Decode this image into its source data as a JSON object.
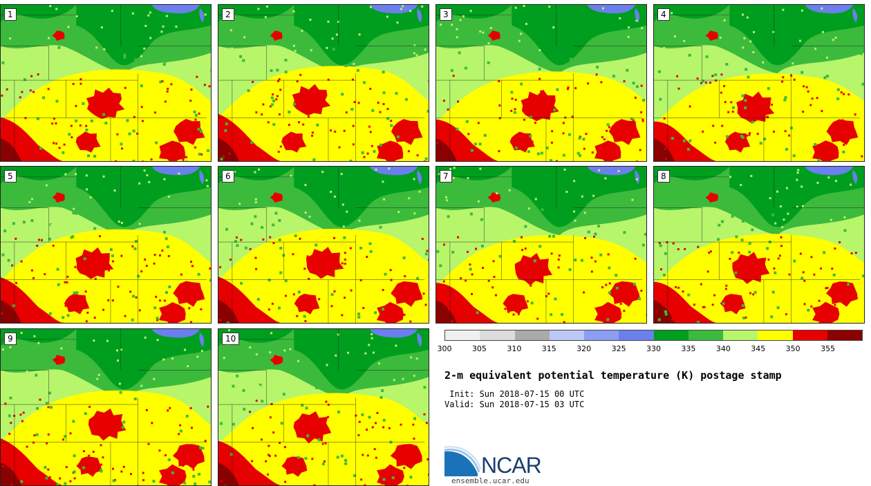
{
  "figure": {
    "title": "2-m equivalent potential temperature (K) postage stamp",
    "init": " Init: Sun 2018-07-15 00 UTC",
    "valid": "Valid: Sun 2018-07-15 03 UTC",
    "logo_text": "NCAR",
    "website": "ensemble.ucar.edu"
  },
  "members": [
    "1",
    "2",
    "3",
    "4",
    "5",
    "6",
    "7",
    "8",
    "9",
    "10"
  ],
  "colorbar": {
    "colors": [
      "#f0f0f0",
      "#dcdcdc",
      "#aaaaaa",
      "#bcc9f7",
      "#8c9ef2",
      "#6b7fed",
      "#009e1f",
      "#3cba3c",
      "#b7f56b",
      "#ffff00",
      "#e60000",
      "#8b0000"
    ],
    "tick_labels": [
      "300",
      "305",
      "310",
      "315",
      "320",
      "325",
      "330",
      "335",
      "340",
      "345",
      "350",
      "355"
    ]
  },
  "palette": {
    "lake": "#6b7fed",
    "dark_green": "#009e1f",
    "mid_green": "#3cba3c",
    "light_green": "#b7f56b",
    "yellow": "#ffff00",
    "red": "#e60000",
    "dark_red": "#8b0000"
  }
}
